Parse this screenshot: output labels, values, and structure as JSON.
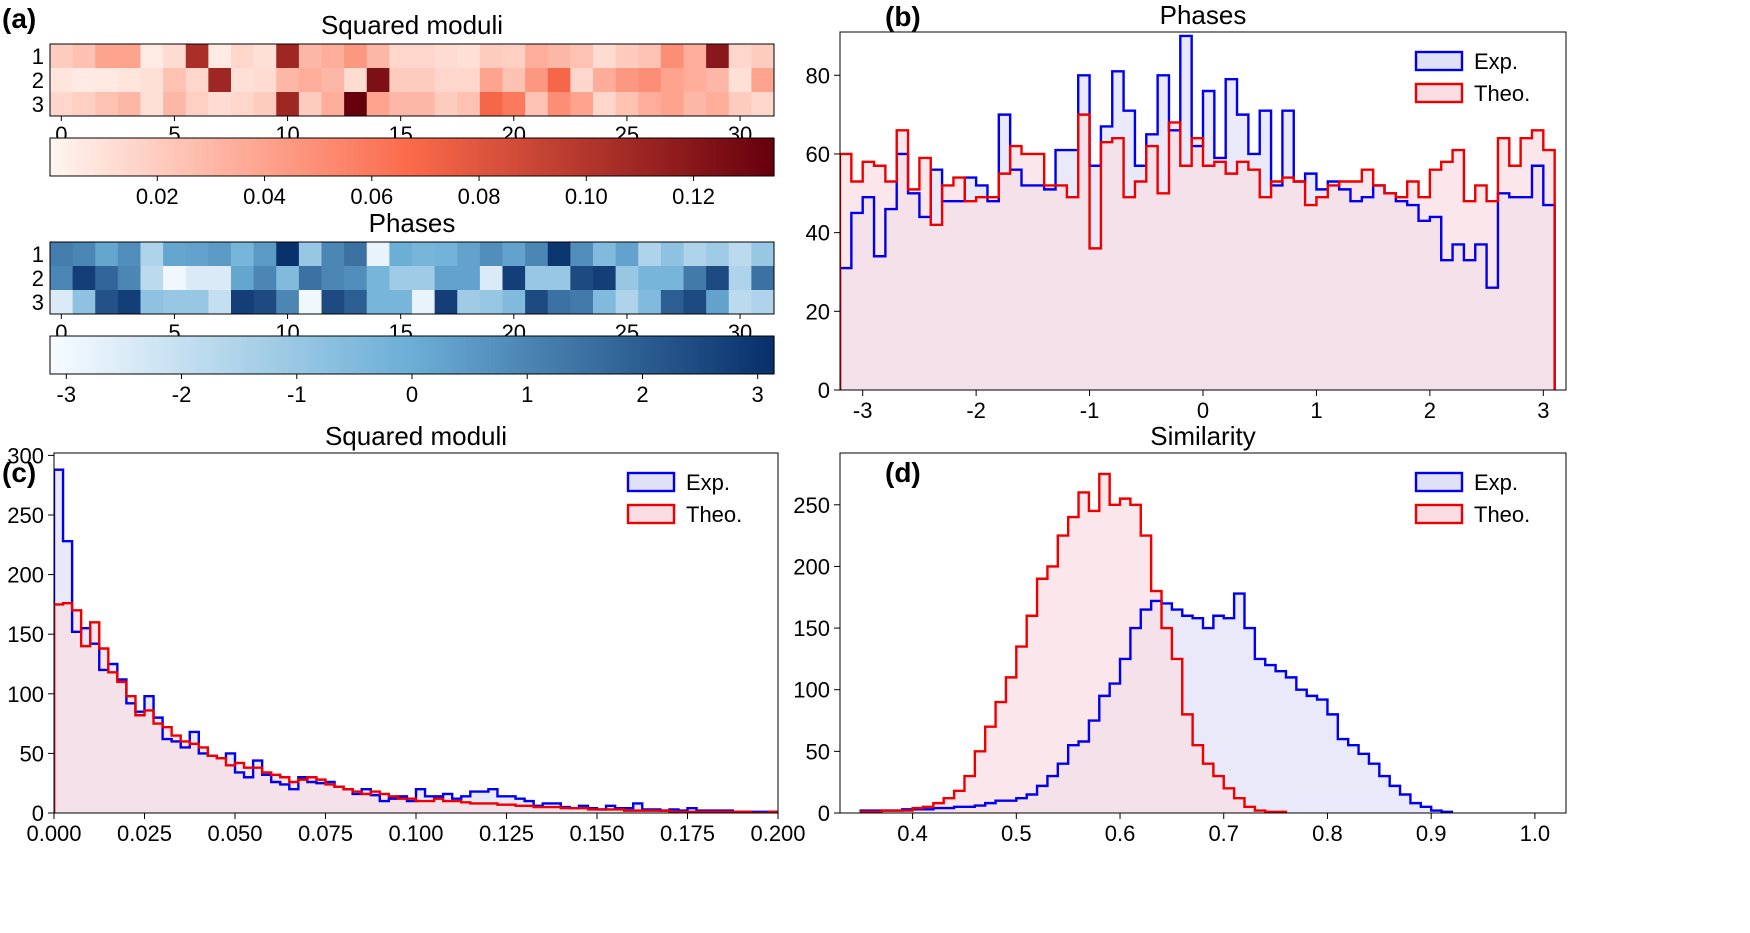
{
  "panels": {
    "a": {
      "label": "(a)",
      "moduli": {
        "title": "Squared moduli",
        "row_labels": [
          "1",
          "2",
          "3"
        ],
        "x_ticks": [
          0,
          5,
          10,
          15,
          20,
          25,
          30
        ],
        "max": 0.135,
        "colorbar_ticks": [
          0.02,
          0.04,
          0.06,
          0.08,
          0.1,
          0.12
        ],
        "colorbar_tick_labels": [
          "0.02",
          "0.04",
          "0.06",
          "0.08",
          "0.10",
          "0.12"
        ],
        "colors": {
          "low": "#fff5f0",
          "mid": "#fb6a4a",
          "high": "#67000d"
        },
        "rows": [
          [
            0.02,
            0.025,
            0.04,
            0.04,
            0.005,
            0.012,
            0.105,
            0.005,
            0.015,
            0.01,
            0.11,
            0.03,
            0.035,
            0.045,
            0.03,
            0.015,
            0.015,
            0.012,
            0.01,
            0.02,
            0.018,
            0.035,
            0.03,
            0.025,
            0.012,
            0.02,
            0.025,
            0.05,
            0.035,
            0.12,
            0.015,
            0.02
          ],
          [
            0.008,
            0.005,
            0.006,
            0.008,
            0.01,
            0.025,
            0.015,
            0.11,
            0.01,
            0.012,
            0.03,
            0.035,
            0.03,
            0.012,
            0.125,
            0.02,
            0.02,
            0.015,
            0.015,
            0.04,
            0.025,
            0.045,
            0.07,
            0.015,
            0.035,
            0.045,
            0.05,
            0.04,
            0.035,
            0.03,
            0.01,
            0.04
          ],
          [
            0.015,
            0.018,
            0.025,
            0.03,
            0.01,
            0.03,
            0.018,
            0.012,
            0.015,
            0.02,
            0.11,
            0.02,
            0.035,
            0.135,
            0.04,
            0.03,
            0.03,
            0.02,
            0.025,
            0.07,
            0.06,
            0.025,
            0.05,
            0.04,
            0.015,
            0.025,
            0.035,
            0.04,
            0.03,
            0.035,
            0.02,
            0.015
          ]
        ]
      },
      "phases": {
        "title": "Phases",
        "row_labels": [
          "1",
          "2",
          "3"
        ],
        "x_ticks": [
          0,
          5,
          10,
          15,
          20,
          25,
          30
        ],
        "min": -3.14159,
        "max": 3.14159,
        "colorbar_ticks": [
          -3,
          -2,
          -1,
          0,
          1,
          2,
          3
        ],
        "colorbar_tick_labels": [
          "-3",
          "-2",
          "-1",
          "0",
          "1",
          "2",
          "3"
        ],
        "colors": {
          "low": "#f7fbff",
          "mid": "#6baed6",
          "high": "#08306b"
        },
        "rows": [
          [
            1.2,
            1.0,
            0.2,
            0.8,
            -1.5,
            0.2,
            0.3,
            0.5,
            -0.3,
            0.5,
            3.1,
            -1.0,
            1.0,
            1.5,
            -2.8,
            0.0,
            -0.3,
            -0.2,
            0.3,
            0.8,
            0.3,
            1.0,
            3.0,
            0.8,
            -0.5,
            0.3,
            -1.5,
            -0.8,
            -1.5,
            -1.2,
            -1.8,
            -1.0
          ],
          [
            1.0,
            2.8,
            1.8,
            1.0,
            -1.8,
            -3.0,
            -2.5,
            -2.5,
            0.2,
            1.0,
            -0.5,
            1.5,
            1.0,
            0.8,
            -0.3,
            -1.2,
            -1.2,
            0.3,
            0.3,
            -2.5,
            2.8,
            -1.0,
            -1.0,
            2.5,
            2.8,
            -1.0,
            -0.3,
            -0.3,
            1.3,
            2.5,
            -1.5,
            1.5
          ],
          [
            -2.5,
            -0.8,
            2.3,
            2.8,
            -0.8,
            -1.0,
            -1.0,
            -2.0,
            2.8,
            2.5,
            1.0,
            -3.0,
            2.5,
            2.0,
            -0.3,
            -0.3,
            -2.8,
            2.8,
            -1.2,
            -1.0,
            -0.5,
            2.5,
            1.5,
            1.3,
            -0.5,
            -1.5,
            -0.5,
            2.0,
            2.5,
            0.3,
            -1.8,
            -1.5
          ]
        ]
      }
    },
    "b": {
      "label": "(b)"
    },
    "c": {
      "label": "(c)"
    },
    "d": {
      "label": "(d)"
    }
  },
  "chart_data": [
    {
      "type": "area",
      "panel": "b",
      "title": "Phases",
      "xlim": [
        -3.2,
        3.2
      ],
      "ylim": [
        0,
        91
      ],
      "x_ticks": [
        -3,
        -2,
        -1,
        0,
        1,
        2,
        3
      ],
      "x_tick_labels": [
        "-3",
        "-2",
        "-1",
        "0",
        "1",
        "2",
        "3"
      ],
      "y_ticks": [
        0,
        20,
        40,
        60,
        80
      ],
      "y_tick_labels": [
        "0",
        "20",
        "40",
        "60",
        "80"
      ],
      "legend_position": "top-right",
      "bin_edges_start": -3.2,
      "bin_width": 0.1,
      "series": [
        {
          "name": "Exp.",
          "color": "#0000ee",
          "fill": "#e0e0f6",
          "values": [
            31,
            45,
            49,
            34,
            46,
            60,
            50,
            44,
            56,
            48,
            48,
            54,
            52,
            48,
            70,
            56,
            52,
            52,
            51,
            61,
            61,
            80,
            57,
            67,
            81,
            71,
            57,
            65,
            80,
            66,
            90,
            62,
            76,
            59,
            79,
            70,
            60,
            71,
            52,
            71,
            53,
            55,
            51,
            53,
            51,
            48,
            49,
            52,
            50,
            48,
            47,
            43,
            44,
            33,
            37,
            33,
            37,
            26,
            50,
            49,
            49,
            57,
            47
          ]
        },
        {
          "name": "Theo.",
          "color": "#ee0000",
          "fill": "#f9dde3",
          "values": [
            60,
            53,
            58,
            57,
            53,
            66,
            51,
            59,
            42,
            52,
            54,
            48,
            49,
            49,
            55,
            62,
            60,
            60,
            52,
            52,
            49,
            70,
            36,
            63,
            64,
            49,
            53,
            62,
            50,
            68,
            57,
            64,
            57,
            58,
            55,
            58,
            56,
            49,
            53,
            54,
            53,
            47,
            49,
            52,
            53,
            53,
            56,
            52,
            50,
            49,
            53,
            49,
            56,
            58,
            61,
            48,
            52,
            48,
            64,
            57,
            64,
            66,
            61
          ]
        }
      ]
    },
    {
      "type": "area",
      "panel": "c",
      "title": "Squared moduli",
      "xlim": [
        0,
        0.2
      ],
      "ylim": [
        0,
        302
      ],
      "x_ticks": [
        0,
        0.025,
        0.05,
        0.075,
        0.1,
        0.125,
        0.15,
        0.175,
        0.2
      ],
      "x_tick_labels": [
        "0.000",
        "0.025",
        "0.050",
        "0.075",
        "0.100",
        "0.125",
        "0.150",
        "0.175",
        "0.200"
      ],
      "y_ticks": [
        0,
        50,
        100,
        150,
        200,
        250,
        300
      ],
      "y_tick_labels": [
        "0",
        "50",
        "100",
        "150",
        "200",
        "250",
        "300"
      ],
      "legend_position": "top-right",
      "bin_edges_start": 0,
      "bin_width": 0.0025,
      "series": [
        {
          "name": "Exp.",
          "color": "#0000ee",
          "fill": "#e0e0f6",
          "values": [
            288,
            228,
            152,
            155,
            142,
            120,
            125,
            112,
            92,
            85,
            98,
            80,
            62,
            60,
            55,
            68,
            50,
            48,
            46,
            50,
            34,
            30,
            44,
            32,
            26,
            24,
            20,
            30,
            26,
            25,
            26,
            22,
            20,
            16,
            20,
            15,
            10,
            12,
            14,
            10,
            20,
            14,
            14,
            16,
            12,
            14,
            18,
            18,
            20,
            14,
            14,
            12,
            10,
            6,
            8,
            8,
            5,
            4,
            6,
            4,
            3,
            6,
            4,
            4,
            8,
            3,
            3,
            2,
            3,
            2,
            4,
            2,
            2,
            2,
            2,
            1,
            1,
            1,
            1,
            1
          ]
        },
        {
          "name": "Theo.",
          "color": "#ee0000",
          "fill": "#f9dde3",
          "values": [
            175,
            176,
            170,
            140,
            160,
            138,
            118,
            110,
            98,
            82,
            86,
            75,
            72,
            65,
            60,
            58,
            55,
            48,
            46,
            40,
            42,
            38,
            38,
            34,
            32,
            30,
            26,
            28,
            30,
            28,
            24,
            22,
            20,
            18,
            16,
            18,
            16,
            14,
            12,
            12,
            10,
            10,
            12,
            10,
            10,
            9,
            8,
            8,
            8,
            7,
            7,
            6,
            6,
            5,
            5,
            5,
            4,
            4,
            4,
            3,
            3,
            3,
            3,
            2,
            2,
            2,
            2,
            2,
            1,
            1,
            1,
            1,
            1,
            1,
            1,
            1,
            1,
            0,
            0,
            1
          ]
        }
      ]
    },
    {
      "type": "area",
      "panel": "d",
      "title": "Similarity",
      "xlim": [
        0.33,
        1.03
      ],
      "ylim": [
        0,
        292
      ],
      "x_ticks": [
        0.4,
        0.5,
        0.6,
        0.7,
        0.8,
        0.9,
        1.0
      ],
      "x_tick_labels": [
        "0.4",
        "0.5",
        "0.6",
        "0.7",
        "0.8",
        "0.9",
        "1.0"
      ],
      "y_ticks": [
        0,
        50,
        100,
        150,
        200,
        250
      ],
      "y_tick_labels": [
        "0",
        "50",
        "100",
        "150",
        "200",
        "250"
      ],
      "legend_position": "top-right",
      "bin_edges_start": 0.35,
      "bin_width": 0.01,
      "series": [
        {
          "name": "Exp.",
          "color": "#0000ee",
          "fill": "#e0e0f6",
          "values": [
            2,
            2,
            2,
            2,
            3,
            3,
            3,
            4,
            4,
            5,
            5,
            6,
            8,
            10,
            10,
            12,
            15,
            22,
            30,
            40,
            55,
            58,
            75,
            95,
            105,
            125,
            150,
            165,
            172,
            170,
            165,
            160,
            158,
            150,
            160,
            158,
            178,
            150,
            125,
            120,
            115,
            110,
            100,
            95,
            92,
            80,
            60,
            55,
            48,
            40,
            30,
            22,
            15,
            8,
            5,
            2,
            1
          ]
        },
        {
          "name": "Theo.",
          "color": "#ee0000",
          "fill": "#f9dde3",
          "values": [
            1,
            1,
            2,
            2,
            2,
            4,
            5,
            8,
            12,
            18,
            30,
            50,
            70,
            90,
            110,
            135,
            160,
            190,
            200,
            225,
            240,
            260,
            245,
            275,
            250,
            255,
            250,
            225,
            180,
            150,
            125,
            80,
            55,
            40,
            30,
            20,
            12,
            5,
            2,
            1,
            1
          ]
        }
      ]
    }
  ]
}
